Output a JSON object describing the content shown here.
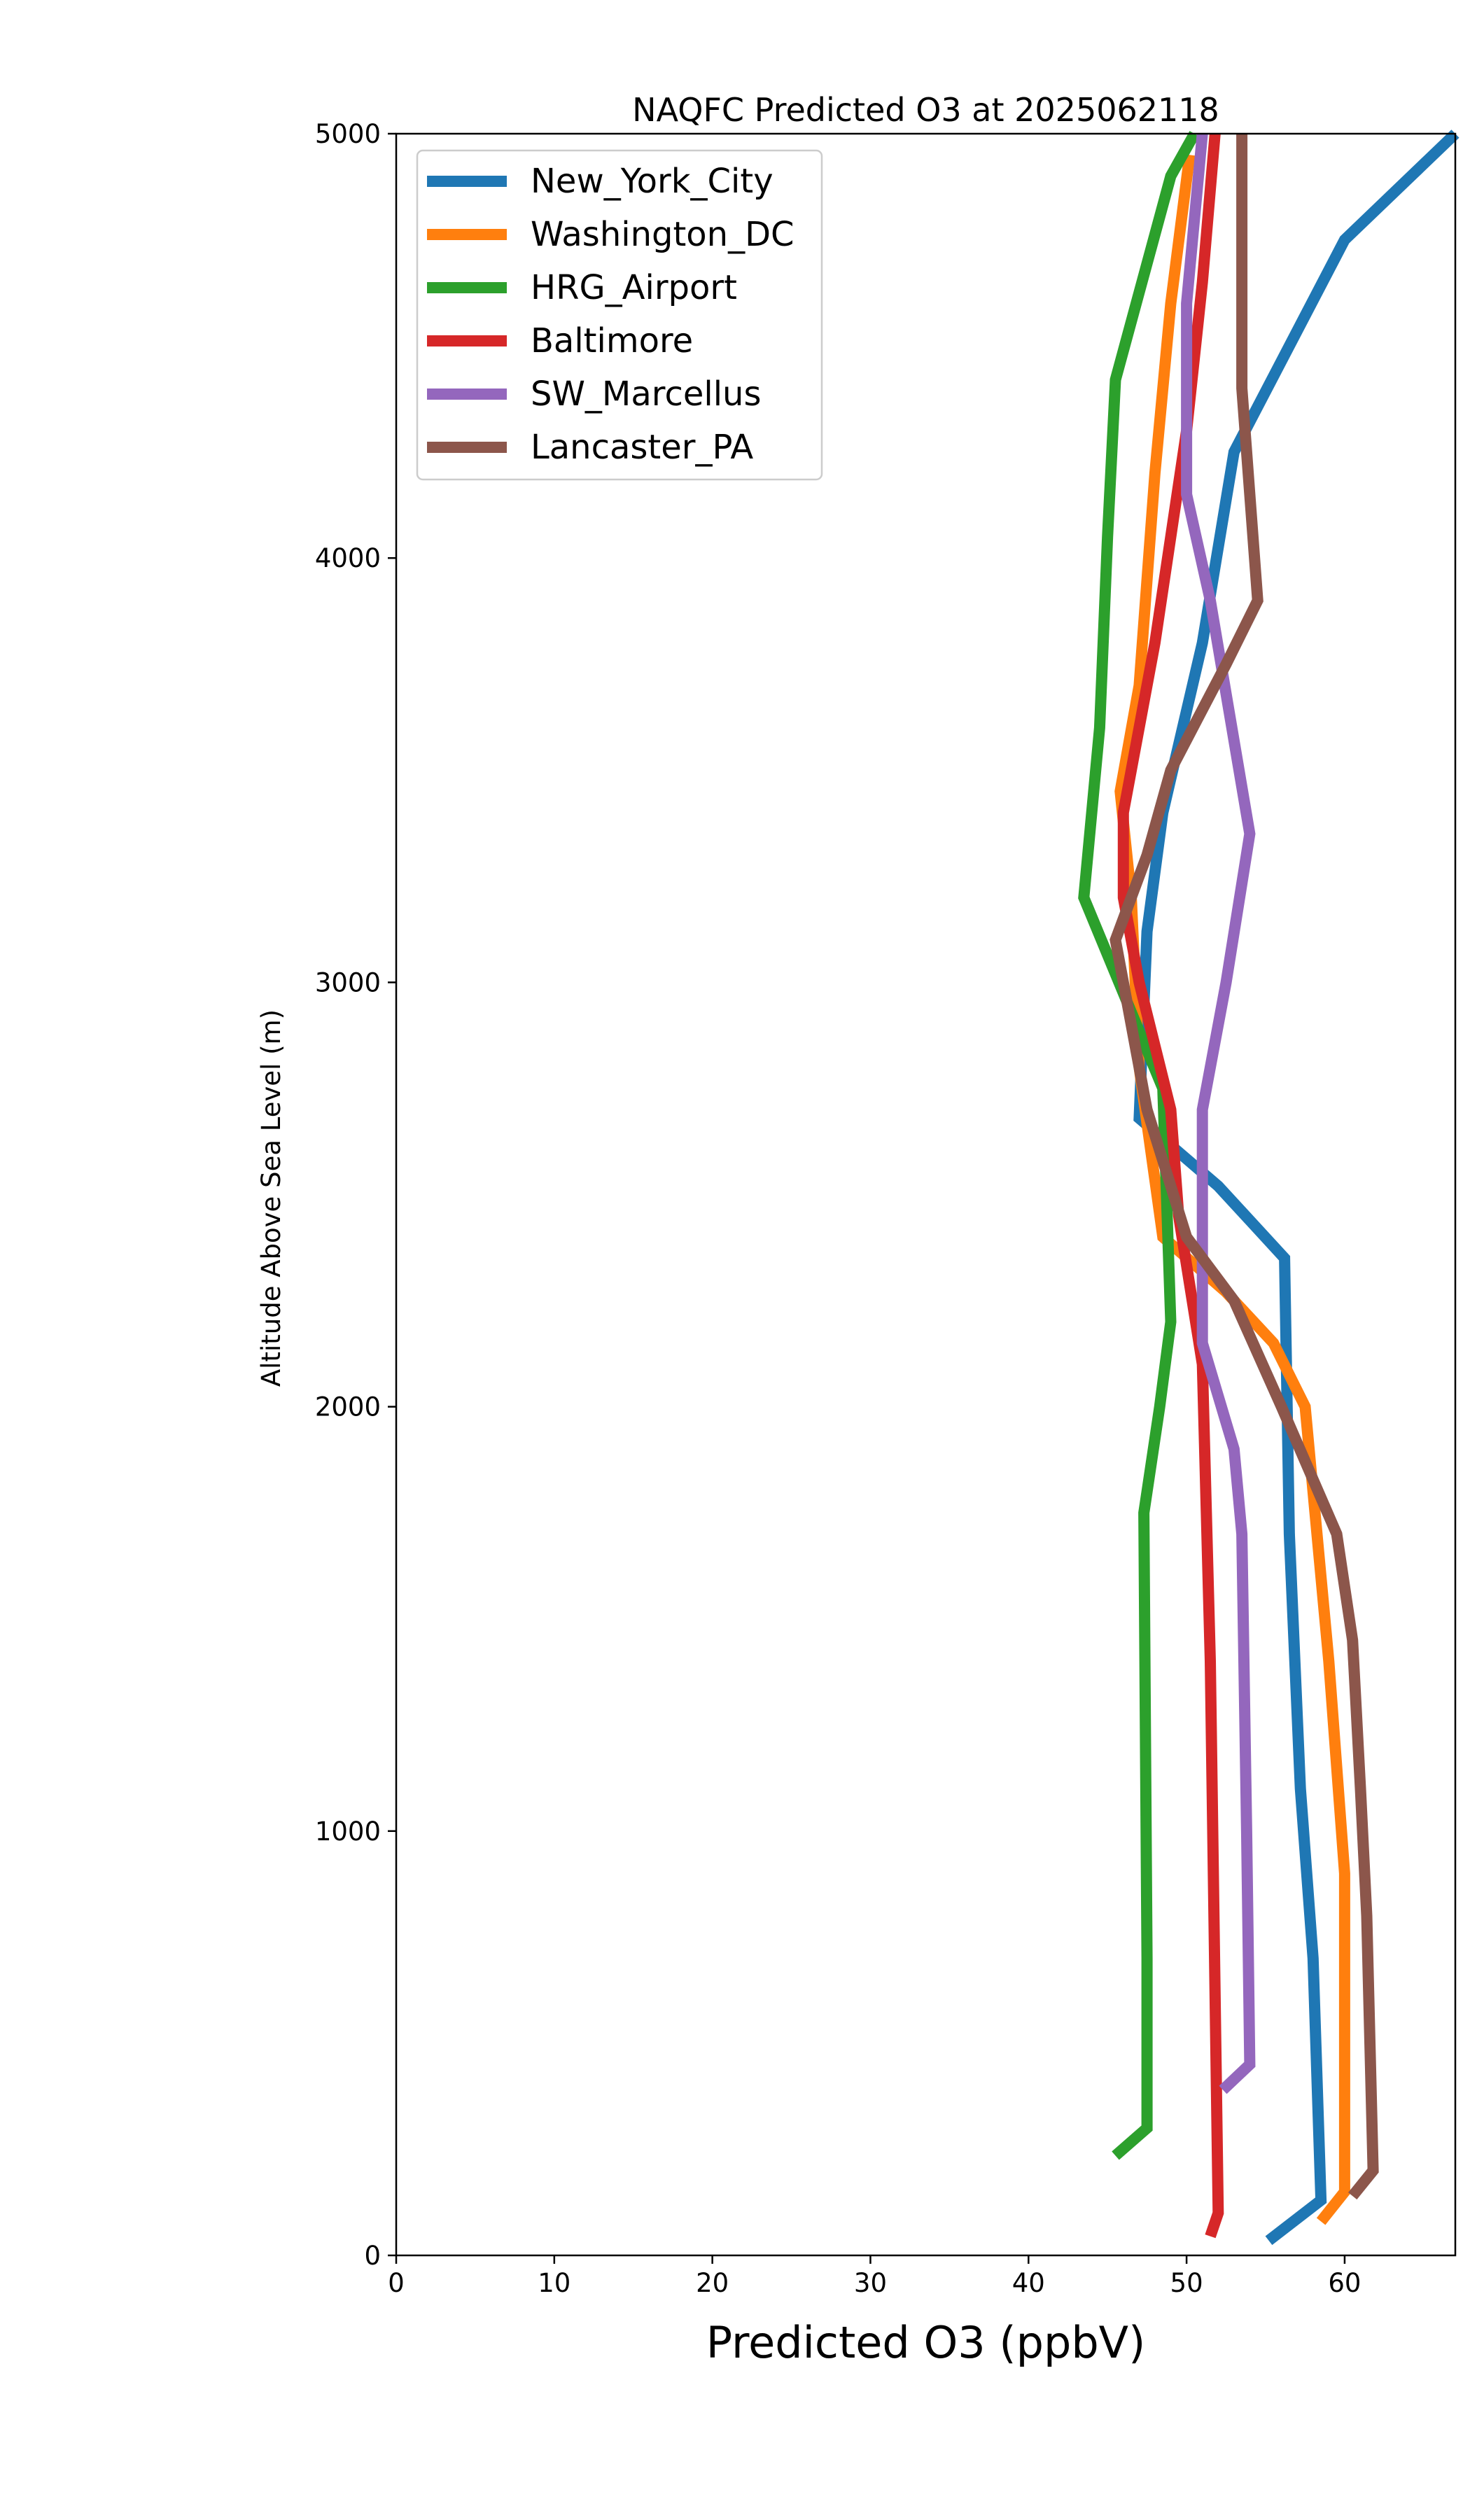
{
  "chart_data": {
    "type": "line",
    "title": "NAQFC Predicted O3 at 2025062118",
    "xlabel": "Predicted O3 (ppbV)",
    "ylabel": "Altitude Above Sea Level (m)",
    "xlim": [
      0,
      67
    ],
    "ylim": [
      0,
      5000
    ],
    "xticks": [
      "0",
      "10",
      "20",
      "30",
      "40",
      "50",
      "60"
    ],
    "yticks": [
      "0",
      "1000",
      "2000",
      "3000",
      "4000",
      "5000"
    ],
    "grid": false,
    "legend_position": "upper-left",
    "series": [
      {
        "name": "New_York_City",
        "color": "#1f77b4",
        "points": [
          [
            55.2,
            35
          ],
          [
            58.5,
            130
          ],
          [
            58,
            700
          ],
          [
            57.2,
            1100
          ],
          [
            56.5,
            1700
          ],
          [
            56.2,
            2350
          ],
          [
            52,
            2520
          ],
          [
            47,
            2680
          ],
          [
            47.5,
            3120
          ],
          [
            48.5,
            3400
          ],
          [
            51,
            3800
          ],
          [
            53,
            4250
          ],
          [
            60,
            4750
          ],
          [
            67,
            5000
          ]
        ]
      },
      {
        "name": "Washington_DC",
        "color": "#ff7f0e",
        "points": [
          [
            58.5,
            80
          ],
          [
            60,
            150
          ],
          [
            60,
            900
          ],
          [
            59,
            1400
          ],
          [
            57.5,
            2000
          ],
          [
            55.5,
            2150
          ],
          [
            52.5,
            2270
          ],
          [
            48.5,
            2400
          ],
          [
            47,
            2800
          ],
          [
            46.5,
            3200
          ],
          [
            45.8,
            3450
          ],
          [
            47,
            3700
          ],
          [
            48,
            4200
          ],
          [
            49,
            4600
          ],
          [
            50.2,
            4950
          ]
        ]
      },
      {
        "name": "HRG_Airport",
        "color": "#2ca02c",
        "points": [
          [
            45.5,
            235
          ],
          [
            47.5,
            300
          ],
          [
            47.5,
            700
          ],
          [
            47.3,
            1750
          ],
          [
            48.3,
            2000
          ],
          [
            49,
            2200
          ],
          [
            48.5,
            2750
          ],
          [
            43.5,
            3200
          ],
          [
            44.5,
            3600
          ],
          [
            45,
            4050
          ],
          [
            45.5,
            4420
          ],
          [
            49,
            4900
          ],
          [
            50.5,
            5000
          ]
        ]
      },
      {
        "name": "Baltimore",
        "color": "#d62728",
        "points": [
          [
            51.5,
            45
          ],
          [
            52,
            100
          ],
          [
            51.5,
            1400
          ],
          [
            51,
            2100
          ],
          [
            49.5,
            2450
          ],
          [
            49,
            2700
          ],
          [
            47,
            3000
          ],
          [
            46,
            3200
          ],
          [
            46,
            3400
          ],
          [
            48,
            3800
          ],
          [
            50,
            4300
          ],
          [
            51,
            4650
          ],
          [
            51.8,
            5000
          ]
        ]
      },
      {
        "name": "SW_Marcellus",
        "color": "#9467bd",
        "points": [
          [
            52.3,
            390
          ],
          [
            54,
            450
          ],
          [
            53.8,
            1000
          ],
          [
            53.5,
            1700
          ],
          [
            53,
            1900
          ],
          [
            51,
            2150
          ],
          [
            51,
            2700
          ],
          [
            52.5,
            3000
          ],
          [
            54,
            3350
          ],
          [
            51.5,
            3900
          ],
          [
            50,
            4150
          ],
          [
            50,
            4600
          ],
          [
            51,
            5000
          ]
        ]
      },
      {
        "name": "Lancaster_PA",
        "color": "#8c564b",
        "points": [
          [
            60.5,
            140
          ],
          [
            61.8,
            200
          ],
          [
            61.4,
            800
          ],
          [
            61,
            1100
          ],
          [
            60.5,
            1450
          ],
          [
            59.5,
            1700
          ],
          [
            56,
            2000
          ],
          [
            53,
            2250
          ],
          [
            50,
            2400
          ],
          [
            47.5,
            2700
          ],
          [
            45.5,
            3100
          ],
          [
            47.5,
            3300
          ],
          [
            49,
            3500
          ],
          [
            52.5,
            3750
          ],
          [
            54.5,
            3900
          ],
          [
            53.5,
            4400
          ],
          [
            53.5,
            5000
          ]
        ]
      }
    ]
  }
}
